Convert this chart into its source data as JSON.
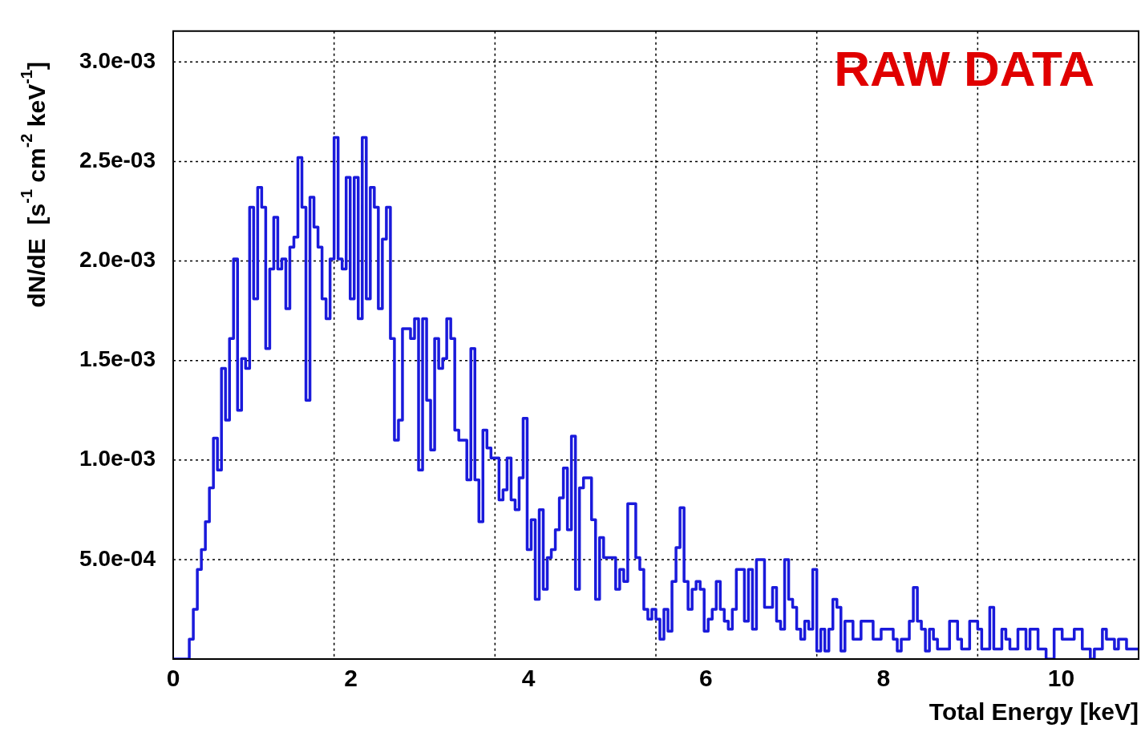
{
  "chart_data": {
    "type": "histogram",
    "xlabel": "Total Energy [keV]",
    "ylabel": "dN/dE  [s$^{-1}$ cm$^{-2}$ keV$^{-1}$]",
    "annotations": [
      "RAW DATA"
    ],
    "color": "#1a1adb",
    "xlim": [
      0,
      10.872
    ],
    "xticks": [
      0,
      {
        "value": 1.812,
        "label": null
      },
      2,
      {
        "value": 3.624,
        "label": null
      },
      4,
      {
        "value": 5.436,
        "label": null
      },
      6,
      {
        "value": 7.248,
        "label": null
      },
      8,
      {
        "value": 9.06,
        "label": null
      },
      10
    ],
    "ylim": [
      0,
      0.003155
    ],
    "yticks": [
      {
        "value": 0.0005,
        "label": "5.0e-04"
      },
      {
        "value": 0.001,
        "label": "1.0e-03"
      },
      {
        "value": 0.0015,
        "label": "1.5e-03"
      },
      {
        "value": 0.002,
        "label": "2.0e-03"
      },
      {
        "value": 0.0025,
        "label": "2.5e-03"
      },
      {
        "value": 0.003,
        "label": "3.0e-03"
      }
    ],
    "grid": true,
    "bins": [
      0,
      0.0453,
      0.0906,
      0.1359,
      0.1812,
      0.2265,
      0.2718,
      0.3171,
      0.3624,
      0.4077,
      0.453,
      0.4983,
      0.5436,
      0.5889,
      0.6342,
      0.6795,
      0.7248,
      0.7701,
      0.8154,
      0.8607,
      0.906,
      0.9513,
      0.9966,
      1.0419,
      1.0872,
      1.1325,
      1.1778,
      1.2231,
      1.2684,
      1.3137,
      1.359,
      1.4043,
      1.4496,
      1.4949,
      1.5402,
      1.5855,
      1.6308,
      1.6761,
      1.7214,
      1.7667,
      1.812,
      1.8573,
      1.9026,
      1.9479,
      1.9932,
      2.0385,
      2.0838,
      2.1291,
      2.1744,
      2.2197,
      2.265,
      2.3103,
      2.3556,
      2.4009,
      2.4462,
      2.4915,
      2.5368,
      2.5821,
      2.6274,
      2.6727,
      2.718,
      2.7633,
      2.8086,
      2.8539,
      2.8992,
      2.9445,
      2.9898,
      3.0351,
      3.0804,
      3.1257,
      3.171,
      3.2163,
      3.2616,
      3.3069,
      3.3522,
      3.3975,
      3.4428,
      3.4881,
      3.5334,
      3.5787,
      3.624,
      3.6693,
      3.7146,
      3.7599,
      3.8052,
      3.8505,
      3.8958,
      3.9411,
      3.9864,
      4.0317,
      4.077,
      4.1223,
      4.1676,
      4.2129,
      4.2582,
      4.3035,
      4.3488,
      4.3941,
      4.4394,
      4.4847,
      4.53,
      4.5753,
      4.6206,
      4.6659,
      4.7112,
      4.7565,
      4.8018,
      4.8471,
      4.8924,
      4.9377,
      4.983,
      5.0283,
      5.0736,
      5.1189,
      5.1642,
      5.2095,
      5.2548,
      5.3001,
      5.3454,
      5.3907,
      5.436,
      5.4813,
      5.5266,
      5.5719,
      5.6172,
      5.6625,
      5.7078,
      5.7531,
      5.7984,
      5.8437,
      5.889,
      5.9343,
      5.9796,
      6.0249,
      6.0702,
      6.1155,
      6.1608,
      6.2061,
      6.2514,
      6.2967,
      6.342,
      6.3873,
      6.4326,
      6.4779,
      6.5232,
      6.5685,
      6.6138,
      6.6591,
      6.7044,
      6.7497,
      6.795,
      6.8403,
      6.8856,
      6.9309,
      6.9762,
      7.0215,
      7.0668,
      7.1121,
      7.1574,
      7.2027,
      7.248,
      7.2933,
      7.3386,
      7.3839,
      7.4292,
      7.4745,
      7.5198,
      7.5651,
      7.6104,
      7.6557,
      7.701,
      7.7463,
      7.7916,
      7.8369,
      7.8822,
      7.9275,
      7.9728,
      8.0181,
      8.0634,
      8.1087,
      8.154,
      8.1993,
      8.2446,
      8.2899,
      8.3352,
      8.3805,
      8.4258,
      8.4711,
      8.5164,
      8.5617,
      8.607,
      8.6523,
      8.6976,
      8.7429,
      8.7882,
      8.8335,
      8.8788,
      8.9241,
      8.9694,
      9.0147,
      9.06,
      9.1053,
      9.1506,
      9.1959,
      9.2412,
      9.2865,
      9.3318,
      9.3771,
      9.4224,
      9.4677,
      9.513,
      9.5583,
      9.6036,
      9.6489,
      9.6942,
      9.7395,
      9.7848,
      9.8301,
      9.8754,
      9.9207,
      9.966,
      10.0113,
      10.0566,
      10.1019,
      10.1472,
      10.1925,
      10.2378,
      10.2831,
      10.3284,
      10.3737,
      10.419,
      10.4643,
      10.5096,
      10.5549,
      10.6002,
      10.6455,
      10.6908,
      10.7361,
      10.7814,
      10.8267,
      10.872
    ],
    "values": [
      0,
      0,
      0,
      0,
      0.0001,
      0.00025,
      0.00045,
      0.00055,
      0.00069,
      0.00086,
      0.00111,
      0.00095,
      0.00146,
      0.0012,
      0.00161,
      0.00201,
      0.00125,
      0.00151,
      0.00146,
      0.00227,
      0.00181,
      0.00237,
      0.00227,
      0.00156,
      0.00196,
      0.00222,
      0.00196,
      0.00201,
      0.00176,
      0.00207,
      0.00212,
      0.00252,
      0.00227,
      0.0013,
      0.00232,
      0.00217,
      0.00207,
      0.00181,
      0.00171,
      0.00201,
      0.00262,
      0.00201,
      0.00196,
      0.00242,
      0.00181,
      0.00242,
      0.00171,
      0.00262,
      0.00181,
      0.00237,
      0.00227,
      0.00176,
      0.00211,
      0.00227,
      0.00161,
      0.0011,
      0.0012,
      0.00166,
      0.00166,
      0.00161,
      0.00171,
      0.00095,
      0.00171,
      0.0013,
      0.00105,
      0.00161,
      0.00146,
      0.00151,
      0.00171,
      0.00161,
      0.00115,
      0.0011,
      0.0011,
      0.0009,
      0.00156,
      0.0009,
      0.00069,
      0.00115,
      0.00106,
      0.00101,
      0.00101,
      0.0008,
      0.00085,
      0.00101,
      0.0008,
      0.00075,
      0.00091,
      0.00121,
      0.00055,
      0.0007,
      0.0003,
      0.00075,
      0.00035,
      0.00051,
      0.00055,
      0.00065,
      0.00081,
      0.00096,
      0.00065,
      0.00112,
      0.00035,
      0.00086,
      0.00091,
      0.00091,
      0.0007,
      0.0003,
      0.00061,
      0.00051,
      0.00051,
      0.00051,
      0.00035,
      0.00045,
      0.00039,
      0.00078,
      0.00078,
      0.00051,
      0.00045,
      0.00025,
      0.0002,
      0.00025,
      0.0002,
      0.0001,
      0.00025,
      0.00014,
      0.00039,
      0.00056,
      0.00076,
      0.00039,
      0.00025,
      0.00035,
      0.00039,
      0.00035,
      0.00014,
      0.0002,
      0.00025,
      0.00039,
      0.00025,
      0.00019,
      0.00015,
      0.00025,
      0.00045,
      0.00045,
      0.00019,
      0.00045,
      0.00015,
      0.0005,
      0.0005,
      0.00026,
      0.00026,
      0.00036,
      0.00019,
      0.00015,
      0.0005,
      0.0003,
      0.00026,
      0.00015,
      0.0001,
      0.00019,
      0.00015,
      0.00045,
      4e-05,
      0.00015,
      4e-05,
      0.00015,
      0.0003,
      0.00026,
      4e-05,
      0.00019,
      0.00019,
      0.0001,
      0.0001,
      0.00019,
      0.00019,
      0.00019,
      0.0001,
      0.0001,
      0.00015,
      0.00015,
      0.00015,
      0.0001,
      4e-05,
      0.0001,
      0.0001,
      0.00019,
      0.00036,
      0.00019,
      0.00015,
      4e-05,
      0.00015,
      0.0001,
      5e-05,
      5e-05,
      5e-05,
      0.00019,
      0.00019,
      0.0001,
      5e-05,
      5e-05,
      0.00019,
      0.00019,
      0.00015,
      5e-05,
      5e-05,
      0.00026,
      5e-05,
      5e-05,
      0.00015,
      0.0001,
      5e-05,
      5e-05,
      0.00015,
      0.00015,
      5e-05,
      0.00015,
      0.00015,
      5e-05,
      5e-05,
      0,
      0,
      0.00015,
      0.00015,
      0.0001,
      0.0001,
      0.0001,
      0.00015,
      0.00015,
      5e-05,
      5e-05,
      0,
      5e-05,
      5e-05,
      0.00015,
      0.0001,
      0.0001,
      5e-05,
      0.0001,
      0.0001,
      5e-05,
      5e-05,
      5e-05
    ]
  }
}
